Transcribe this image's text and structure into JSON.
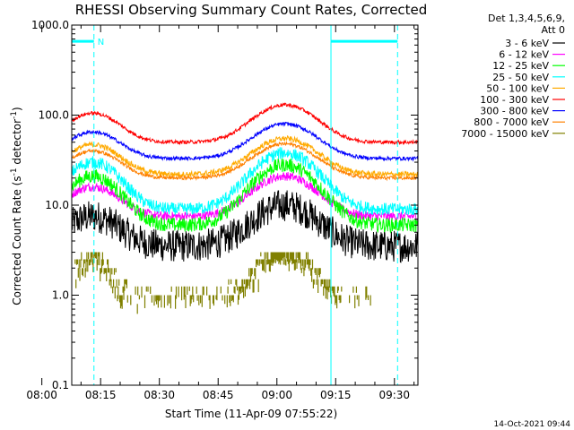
{
  "chart_data": {
    "type": "line",
    "title": "RHESSI Observing Summary Count Rates, Corrected",
    "xlabel": "Start Time (11-Apr-09 07:55:22)",
    "ylabel_main": "Corrected Count Rate (s",
    "ylabel_sup1": "-1",
    "ylabel_mid": " detector",
    "ylabel_sup2": "-1",
    "ylabel_end": ")",
    "y_scale": "log",
    "ylim": [
      0.1,
      1000
    ],
    "x_range_minutes": [
      7.633,
      96.0
    ],
    "x_ticks": [
      {
        "m": 0,
        "label": "08:00"
      },
      {
        "m": 15,
        "label": "08:15"
      },
      {
        "m": 30,
        "label": "08:30"
      },
      {
        "m": 45,
        "label": "08:45"
      },
      {
        "m": 60,
        "label": "09:00"
      },
      {
        "m": 75,
        "label": "09:15"
      },
      {
        "m": 90,
        "label": "09:30"
      }
    ],
    "y_ticks": [
      {
        "v": 0.1,
        "label": "0.1"
      },
      {
        "v": 1,
        "label": "1.0"
      },
      {
        "v": 10,
        "label": "10.0"
      },
      {
        "v": 100,
        "label": "100.0"
      },
      {
        "v": 1000,
        "label": "1000.0"
      }
    ],
    "legend_header": [
      "Det 1,3,4,5,6,9,",
      "Att 0"
    ],
    "legend_placement": "right",
    "series": [
      {
        "name": "3 - 6 keV",
        "color": "#000000",
        "base": 3.5,
        "peak1": 7.5,
        "peak2": 10,
        "noise": 0.18
      },
      {
        "name": "6 - 12 keV",
        "color": "#ff00ff",
        "base": 7.5,
        "peak1": 16,
        "peak2": 21,
        "noise": 0.05
      },
      {
        "name": "12 - 25 keV",
        "color": "#00ff00",
        "base": 6,
        "peak1": 21,
        "peak2": 28,
        "noise": 0.08
      },
      {
        "name": "25 - 50 keV",
        "color": "#00ffff",
        "base": 9,
        "peak1": 30,
        "peak2": 38,
        "noise": 0.07
      },
      {
        "name": "50 - 100 keV",
        "color": "#ffaa00",
        "base": 22,
        "peak1": 47,
        "peak2": 55,
        "noise": 0.03
      },
      {
        "name": "100 - 300 keV",
        "color": "#ff0000",
        "base": 50,
        "peak1": 105,
        "peak2": 130,
        "noise": 0.02
      },
      {
        "name": "300 - 800 keV",
        "color": "#0000ff",
        "base": 33,
        "peak1": 65,
        "peak2": 80,
        "noise": 0.02
      },
      {
        "name": "800 - 7000 keV",
        "color": "#ff8000",
        "base": 20,
        "peak1": 40,
        "peak2": 48,
        "noise": 0.02
      },
      {
        "name": "7000 - 15000 keV",
        "color": "#808000",
        "base": 1,
        "peak1": 2.8,
        "peak2": 3.2,
        "noise": 0.1
      }
    ],
    "peaks_minutes": [
      13,
      62
    ],
    "saa_intervals": [
      {
        "start": 7.633,
        "end": 13.3
      },
      {
        "start": 73.8,
        "end": 90.8
      }
    ],
    "night_lines_minutes": [
      13.3,
      90.8
    ],
    "saa_line_minutes": [
      7.633,
      73.8
    ],
    "flag_label": "N",
    "saa_level": 660
  },
  "timestamp": "14-Oct-2021 09:44",
  "colors": {
    "cyan": "#00ffff",
    "axes": "#000000"
  }
}
